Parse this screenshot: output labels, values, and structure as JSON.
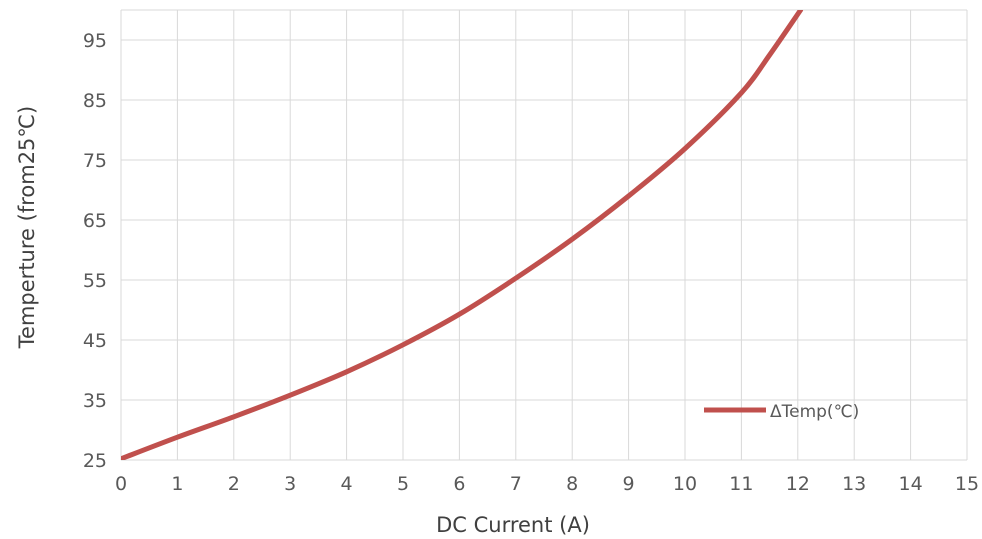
{
  "chart_data": {
    "type": "line",
    "title": "",
    "xlabel": "DC Current (A)",
    "ylabel": "Temperture (from25℃)",
    "xlim": [
      0,
      15
    ],
    "ylim": [
      25,
      100
    ],
    "x_ticks": [
      0,
      1,
      2,
      3,
      4,
      5,
      6,
      7,
      8,
      9,
      10,
      11,
      12,
      13,
      14,
      15
    ],
    "y_ticks": [
      25,
      35,
      45,
      55,
      65,
      75,
      85,
      95
    ],
    "grid": true,
    "legend_position": "bottom-right",
    "series": [
      {
        "name": "ΔTemp(℃)",
        "color": "#c0504d",
        "x": [
          0,
          1,
          2,
          3,
          4,
          5,
          6,
          7,
          8,
          9,
          10,
          11,
          11.5,
          12.05
        ],
        "y": [
          25.2,
          28.8,
          32.2,
          35.8,
          39.7,
          44.2,
          49.3,
          55.3,
          61.8,
          69.0,
          76.9,
          86.2,
          92.5,
          100.0
        ]
      }
    ]
  }
}
